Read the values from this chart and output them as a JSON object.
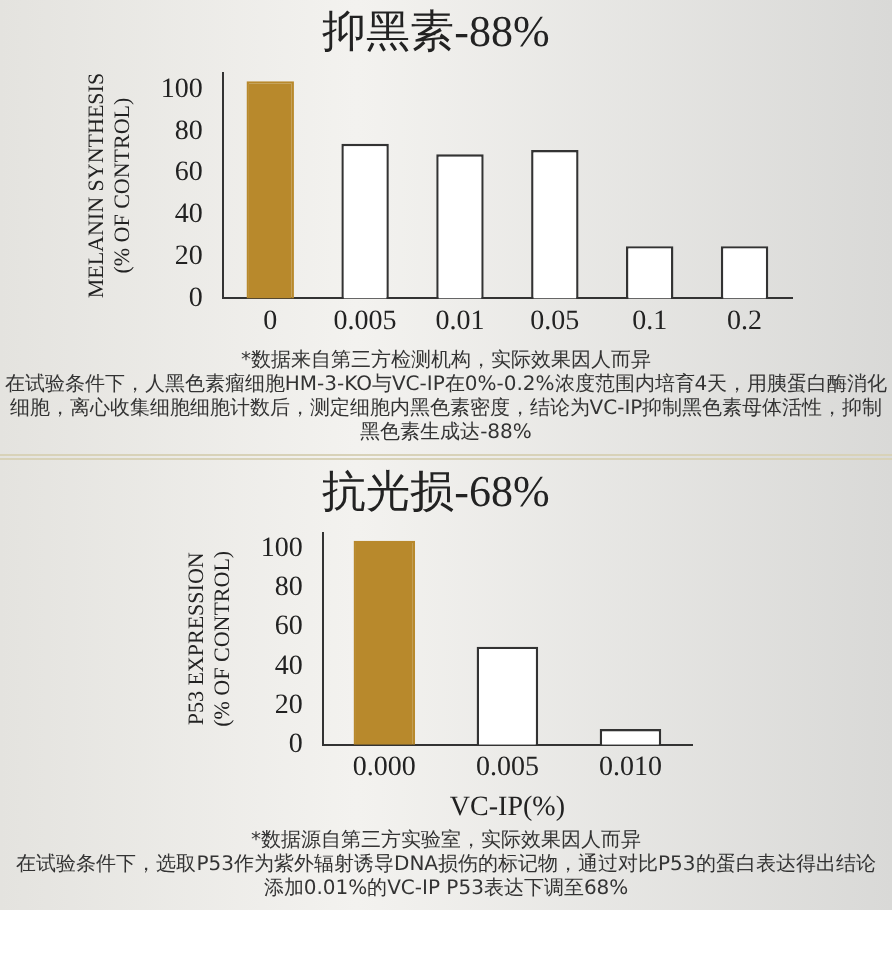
{
  "chart_data": [
    {
      "type": "bar",
      "title": "抑黑素-88%",
      "ylabel": "MELANIN SYNTHESIS\n(% OF CONTROL)",
      "categories": [
        "0",
        "0.005",
        "0.01",
        "0.05",
        "0.1",
        "0.2"
      ],
      "values": [
        104,
        74,
        69,
        71,
        25,
        25
      ],
      "colors": [
        "#b8892c",
        "#ffffff",
        "#ffffff",
        "#ffffff",
        "#ffffff",
        "#ffffff"
      ],
      "ylim": [
        0,
        108
      ],
      "yticks": [
        0,
        20,
        40,
        60,
        80,
        100
      ],
      "grid": false,
      "legend": false,
      "annotations": [
        "*数据来自第三方检测机构，实际效果因人而异",
        "在试验条件下，人黑色素瘤细胞HM-3-KO与VC-IP在0%-0.2%浓度范围内培育4天，用胰蛋白酶消化细胞，离心收集细胞细胞计数后，测定细胞内黑色素密度，结论为VC-IP抑制黑色素母体活性，抑制黑色素生成达-88%"
      ]
    },
    {
      "type": "bar",
      "title": "抗光损-68%",
      "xlabel": "VC-IP(%)",
      "ylabel": "P53 EXPRESSION\n(% OF CONTROL)",
      "categories": [
        "0.000",
        "0.005",
        "0.010"
      ],
      "values": [
        104,
        50,
        8
      ],
      "colors": [
        "#b8892c",
        "#ffffff",
        "#ffffff"
      ],
      "ylim": [
        0,
        108
      ],
      "yticks": [
        0,
        20,
        40,
        60,
        80,
        100
      ],
      "grid": false,
      "legend": false,
      "annotations": [
        "*数据源自第三方实验室，实际效果因人而异",
        "在试验条件下，选取P53作为紫外辐射诱导DNA损伤的标记物，通过对比P53的蛋白表达得出结论",
        "添加0.01%的VC-IP P53表达下调至68%"
      ]
    }
  ]
}
